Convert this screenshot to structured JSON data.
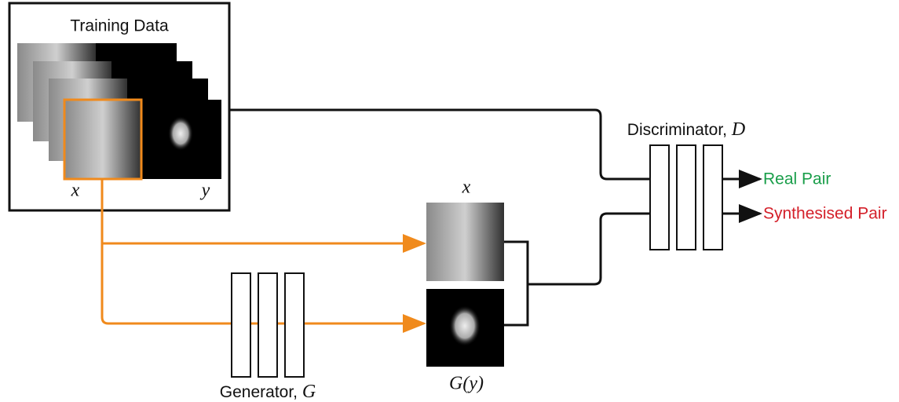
{
  "training_data": {
    "title": "Training Data",
    "x_label": "x",
    "y_label": "y"
  },
  "generator": {
    "label": "Generator,",
    "symbol": "G",
    "output_label": "G(y)"
  },
  "paired_input_label": "x",
  "discriminator": {
    "label": "Discriminator,",
    "symbol": "D"
  },
  "outputs": {
    "real": "Real Pair",
    "synthesised": "Synthesised Pair"
  }
}
